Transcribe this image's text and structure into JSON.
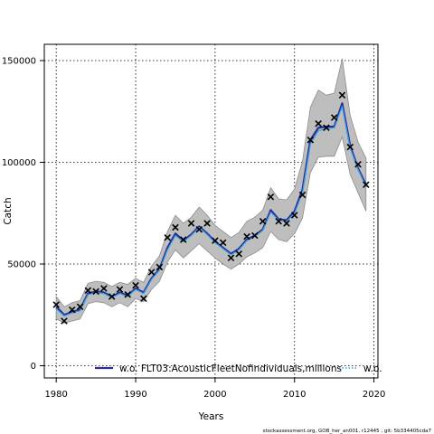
{
  "chart_data": {
    "type": "line",
    "xlabel": "Years",
    "ylabel": "Catch",
    "xlim": [
      1978.5,
      2020.5
    ],
    "ylim": [
      -6000,
      158000
    ],
    "x_ticks": [
      1980,
      1990,
      2000,
      2010,
      2020
    ],
    "y_ticks": [
      0,
      50000,
      100000,
      150000
    ],
    "x_tick_labels": [
      "1980",
      "1990",
      "2000",
      "2010",
      "2020"
    ],
    "y_tick_labels": [
      "0",
      "50000",
      "100000",
      "150000"
    ],
    "grid": true,
    "legend_position": "bottom-inside",
    "colors": {
      "band": "#bebebe",
      "band_edge": "#8c8c8c",
      "series_main": "#2a2a8f",
      "series_alt": "#2ea3ee",
      "observed": "#000000"
    },
    "legend": [
      {
        "label": "w.o. FLT03:AcousticFleetNofindividuals,millions",
        "style": "solid",
        "color": "#2a2a8f"
      },
      {
        "label": "w.o.",
        "style": "dotted",
        "color": "#2ea3ee"
      }
    ],
    "observed": {
      "x": [
        1980,
        1981,
        1982,
        1983,
        1984,
        1985,
        1986,
        1987,
        1988,
        1989,
        1990,
        1991,
        1992,
        1993,
        1994,
        1995,
        1996,
        1997,
        1998,
        1999,
        2000,
        2001,
        2002,
        2003,
        2004,
        2005,
        2006,
        2007,
        2008,
        2009,
        2010,
        2011,
        2012,
        2013,
        2014,
        2015,
        2016,
        2017,
        2018,
        2019
      ],
      "y": [
        30000,
        22000,
        27500,
        29000,
        37000,
        36500,
        38000,
        34000,
        37500,
        35000,
        39500,
        33000,
        46000,
        48500,
        63000,
        68000,
        62000,
        70000,
        67000,
        70000,
        61500,
        60500,
        53000,
        55000,
        63500,
        64000,
        71000,
        83000,
        71000,
        70000,
        74000,
        84000,
        111000,
        119000,
        117000,
        122000,
        133000,
        107500,
        99000,
        89000
      ]
    },
    "series": [
      {
        "name": "w.o. FLT03:AcousticFleetNofindividuals,millions",
        "x": [
          1980,
          1981,
          1982,
          1983,
          1984,
          1985,
          1986,
          1987,
          1988,
          1989,
          1990,
          1991,
          1992,
          1993,
          1994,
          1995,
          1996,
          1997,
          1998,
          1999,
          2000,
          2001,
          2002,
          2003,
          2004,
          2005,
          2006,
          2007,
          2008,
          2009,
          2010,
          2011,
          2012,
          2013,
          2014,
          2015,
          2016,
          2017,
          2018,
          2019
        ],
        "y": [
          29000,
          25000,
          26500,
          27500,
          35500,
          36500,
          36000,
          34000,
          36000,
          34500,
          38000,
          36000,
          43000,
          47500,
          58000,
          65000,
          61500,
          64500,
          68500,
          65000,
          61000,
          58000,
          55000,
          57500,
          62000,
          64000,
          67000,
          76500,
          72000,
          71500,
          76000,
          86500,
          111000,
          117000,
          117500,
          117500,
          129000,
          108000,
          97000,
          89000
        ]
      },
      {
        "name": "w.o.",
        "x": [
          1980,
          1981,
          1982,
          1983,
          1984,
          1985,
          1986,
          1987,
          1988,
          1989,
          1990,
          1991,
          1992,
          1993,
          1994,
          1995,
          1996,
          1997,
          1998,
          1999,
          2000,
          2001,
          2002,
          2003,
          2004,
          2005,
          2006,
          2007,
          2008,
          2009,
          2010,
          2011,
          2012,
          2013,
          2014,
          2015,
          2016,
          2017,
          2018,
          2019
        ],
        "y": [
          28000,
          24500,
          26000,
          27000,
          35000,
          36000,
          35500,
          33500,
          35500,
          34000,
          37500,
          35500,
          42500,
          47000,
          57000,
          64000,
          61000,
          64000,
          68000,
          64500,
          60500,
          57500,
          54500,
          57000,
          61500,
          63500,
          66500,
          75500,
          71500,
          71000,
          75000,
          85000,
          109000,
          115500,
          116500,
          117000,
          127500,
          107000,
          96500,
          88000
        ]
      }
    ],
    "band_lower": [
      23000,
      21000,
      22000,
      23000,
      30500,
      31500,
      31000,
      29000,
      31000,
      29000,
      33000,
      31500,
      37500,
      41500,
      51000,
      57000,
      53000,
      56500,
      60000,
      56500,
      53000,
      50000,
      47500,
      50000,
      53500,
      55500,
      58000,
      66000,
      62000,
      61000,
      65000,
      72500,
      95000,
      102500,
      103000,
      103000,
      112500,
      94000,
      85000,
      76000
    ],
    "band_upper": [
      34000,
      29000,
      31000,
      32000,
      40500,
      41500,
      41000,
      39000,
      41000,
      40000,
      43000,
      41000,
      49000,
      54000,
      66000,
      74000,
      70000,
      73000,
      78000,
      74000,
      69000,
      66000,
      63000,
      65500,
      71000,
      73000,
      76500,
      87500,
      82000,
      81500,
      87000,
      100500,
      127000,
      135500,
      133000,
      134000,
      151000,
      123000,
      110000,
      102000
    ]
  },
  "footer": "stockassessment.org, GOB_her_an001, r12445 , git: 5b334405cda7"
}
